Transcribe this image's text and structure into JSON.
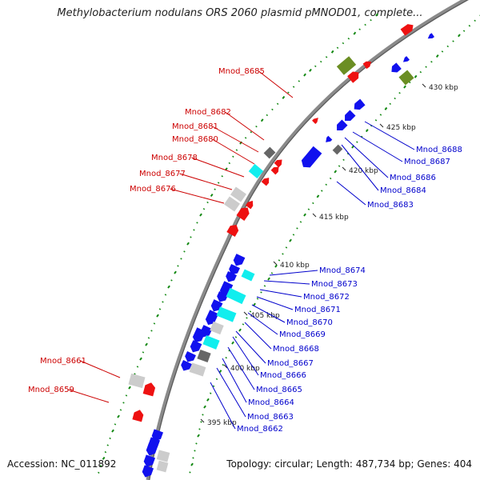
{
  "title": "Methylobacterium nodulans ORS 2060 plasmid pMNOD01, complete...",
  "footer": {
    "accession": "Accession: NC_011892",
    "summary": "Topology: circular; Length: 487,734 bp; Genes: 404"
  },
  "colors": {
    "backbone": "#8a8a8a",
    "forward_gene": "#ee1111",
    "reverse_gene": "#1111ee",
    "cyan_feature": "#11eeee",
    "gray_feature": "#cccccc",
    "dark_feature": "#666666",
    "olive_feature": "#6b8e23",
    "gc_track": "#118811",
    "label_forward": "#cc0000",
    "label_reverse": "#0000cc"
  },
  "scale_ticks": [
    "430 kbp",
    "425 kbp",
    "420 kbp",
    "415 kbp",
    "410 kbp",
    "405 kbp",
    "400 kbp",
    "395 kbp"
  ],
  "labels_forward": [
    "Mnod_8685",
    "Mnod_8682",
    "Mnod_8681",
    "Mnod_8680",
    "Mnod_8678",
    "Mnod_8677",
    "Mnod_8676",
    "Mnod_8661",
    "Mnod_8659"
  ],
  "labels_reverse": [
    "Mnod_8688",
    "Mnod_8687",
    "Mnod_8686",
    "Mnod_8684",
    "Mnod_8683",
    "Mnod_8674",
    "Mnod_8673",
    "Mnod_8672",
    "Mnod_8671",
    "Mnod_8670",
    "Mnod_8669",
    "Mnod_8668",
    "Mnod_8667",
    "Mnod_8666",
    "Mnod_8665",
    "Mnod_8664",
    "Mnod_8663",
    "Mnod_8662"
  ]
}
